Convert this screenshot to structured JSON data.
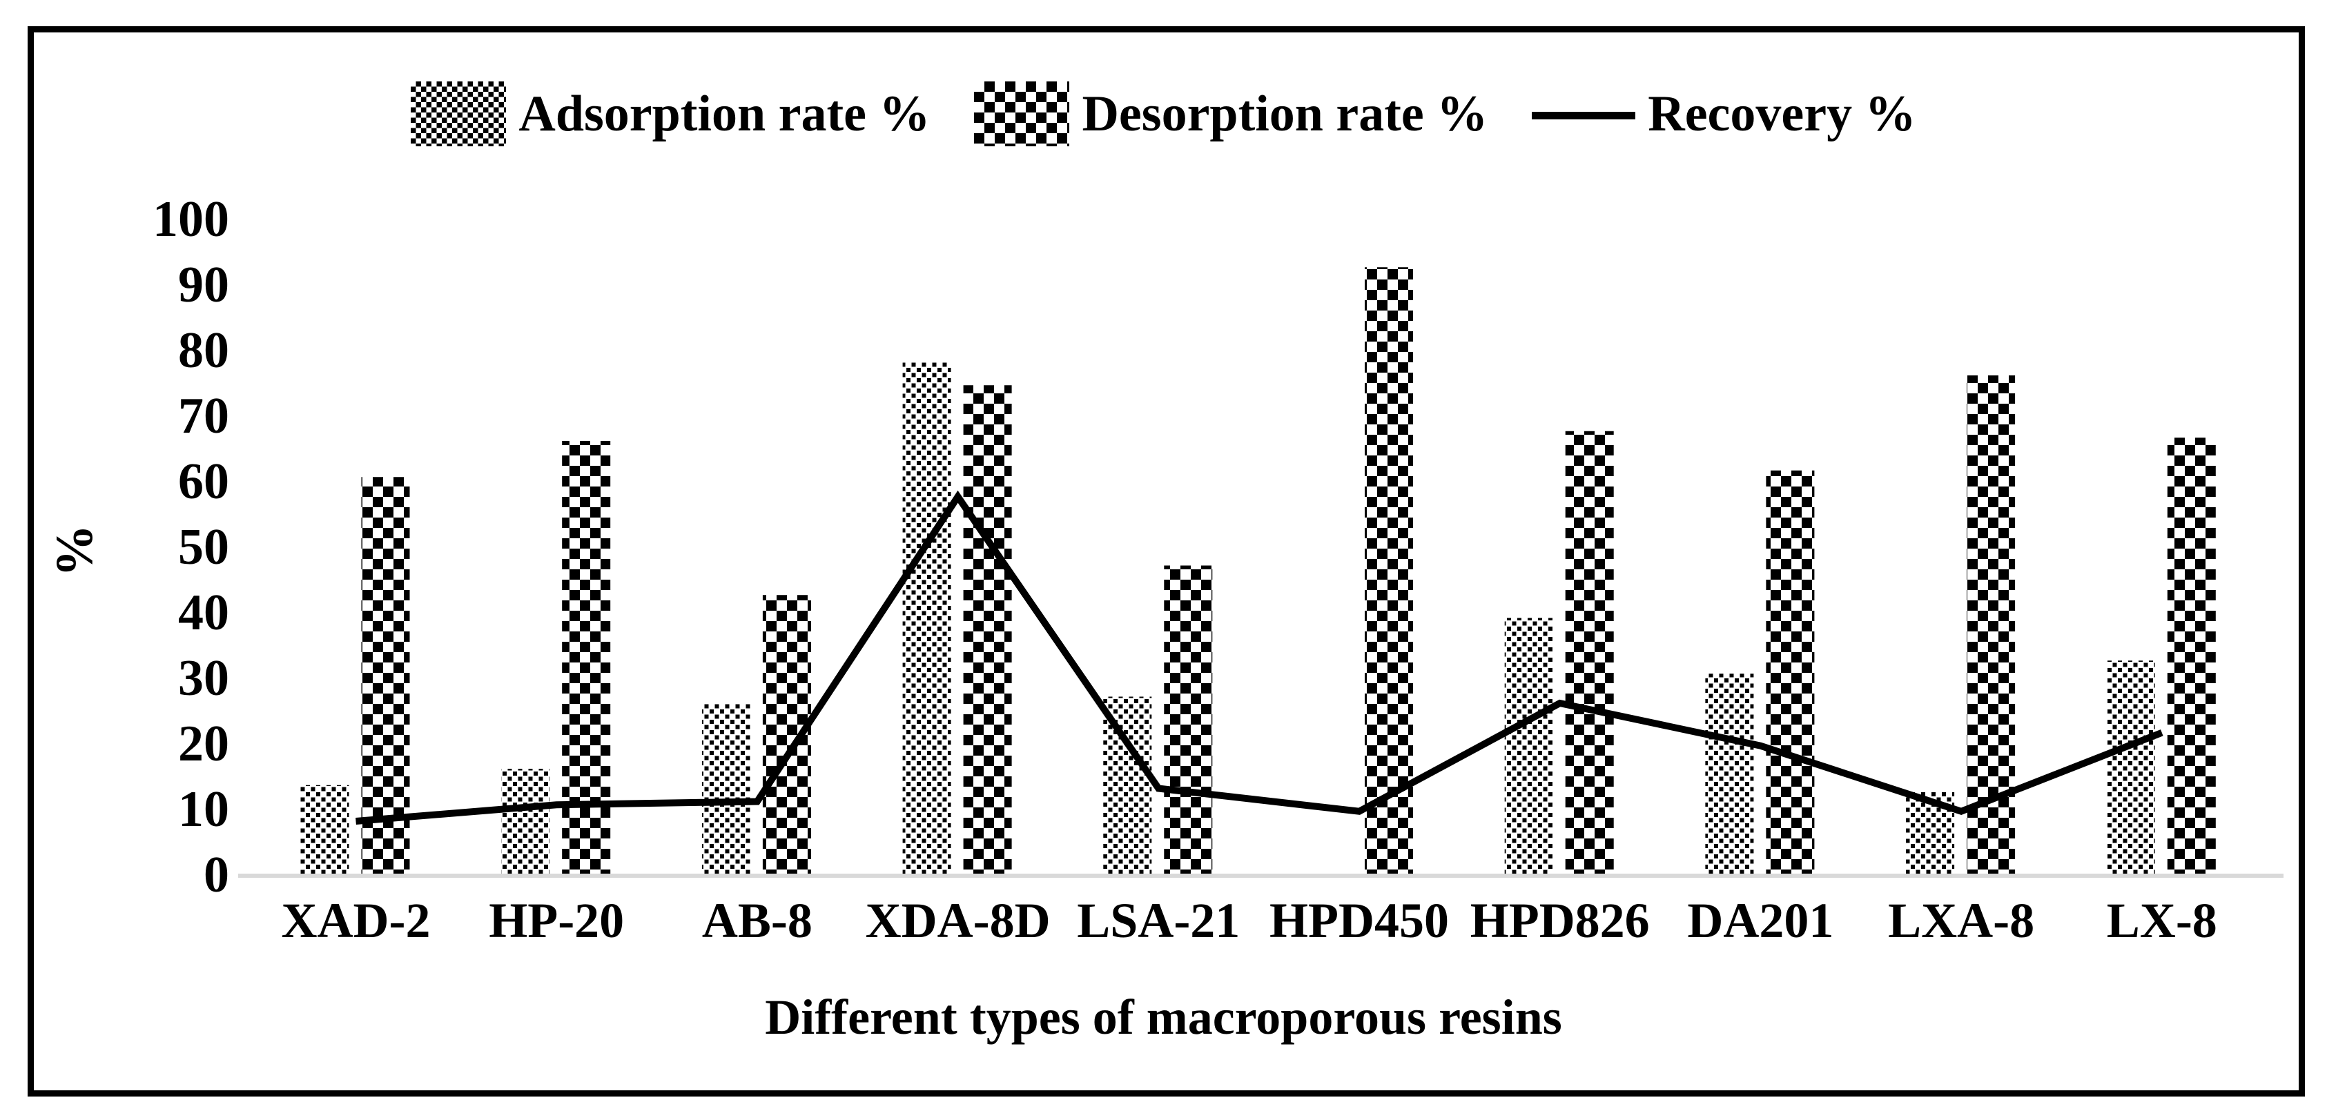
{
  "chart_data": {
    "type": "bar",
    "subtype": "grouped-bars-with-line-overlay",
    "categories": [
      "XAD-2",
      "HP-20",
      "AB-8",
      "XDA-8D",
      "LSA-21",
      "HPD450",
      "HPD826",
      "DA201",
      "LXA-8",
      "LX-8"
    ],
    "series": [
      {
        "name": "Adsorption rate %",
        "type": "bar",
        "pattern": "fine-dot-checker",
        "values": [
          13.5,
          16,
          26,
          78,
          27,
          0,
          39,
          30.5,
          12.5,
          32.5
        ]
      },
      {
        "name": "Desorption rate %",
        "type": "bar",
        "pattern": "bold-checker",
        "values": [
          60.5,
          66,
          42.5,
          74.5,
          47,
          92.5,
          67.5,
          61.5,
          76,
          66.5
        ]
      },
      {
        "name": "Recovery %",
        "type": "line",
        "color": "#000000",
        "values": [
          8,
          10.5,
          11,
          57.5,
          13,
          9.5,
          26,
          19.5,
          9.5,
          21.5
        ]
      }
    ],
    "title": "",
    "xlabel": "Different types of macroporous resins",
    "ylabel": "%",
    "ylim": [
      0,
      100
    ],
    "ytick_step": 10,
    "grid": false,
    "legend_position": "top-center",
    "axis_line_color": "#d9d9d9",
    "text_color": "#000000",
    "frame_border_color": "#000000",
    "background_color": "#ffffff"
  },
  "legend": {
    "adsorption_label": "Adsorption rate %",
    "desorption_label": "Desorption rate %",
    "recovery_label": "Recovery %"
  },
  "axes": {
    "ylabel": "%",
    "xlabel": "Different types of macroporous resins",
    "ytick_labels": [
      "100",
      "90",
      "80",
      "70",
      "60",
      "50",
      "40",
      "30",
      "20",
      "10",
      "0"
    ]
  }
}
